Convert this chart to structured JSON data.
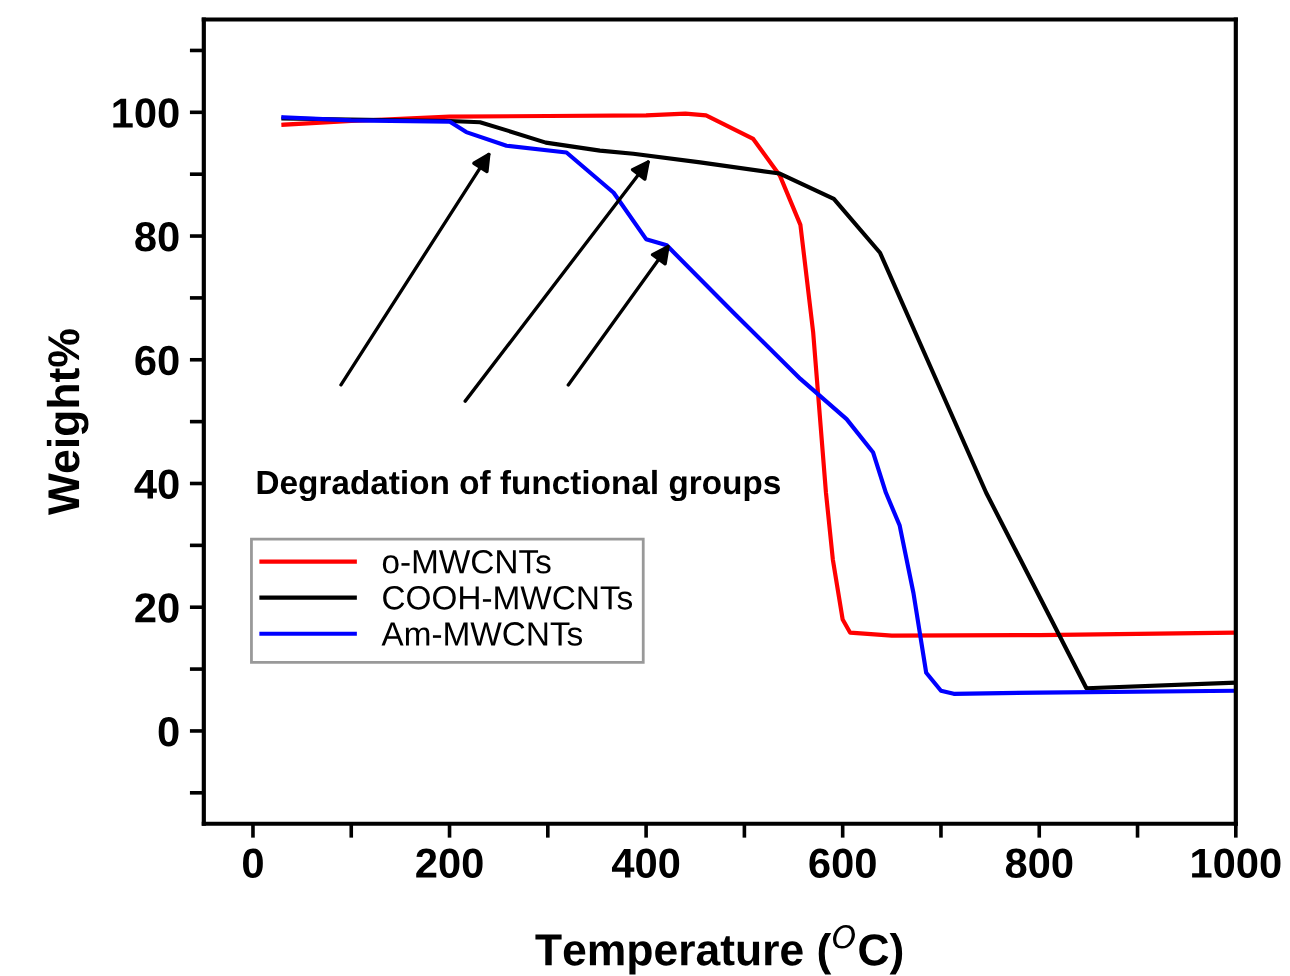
{
  "chart_data": {
    "type": "line",
    "xlabel": "Temperature ($^{O}$C)",
    "ylabel": "Weight%",
    "xlim": [
      -50,
      1000
    ],
    "ylim": [
      -15,
      115
    ],
    "xticks": [
      0,
      {
        "value": 100,
        "label": null
      },
      200,
      {
        "value": 300,
        "label": null
      },
      400,
      {
        "value": 500,
        "label": null
      },
      600,
      {
        "value": 700,
        "label": null
      },
      800,
      {
        "value": 900,
        "label": null
      },
      1000
    ],
    "yticks": [
      {
        "value": -10,
        "label": null
      },
      0,
      {
        "value": 10,
        "label": null
      },
      20,
      {
        "value": 30,
        "label": null
      },
      40,
      {
        "value": 50,
        "label": null
      },
      60,
      {
        "value": 70,
        "label": null
      },
      80,
      {
        "value": 90,
        "label": null
      },
      100,
      {
        "value": 110,
        "label": null
      }
    ],
    "grid": false,
    "legend": "bottom left",
    "marker": "none",
    "line_style": "solid",
    "series": [
      {
        "name": "o-MWCNTs",
        "color": "#ff0000",
        "x": [
          31,
          100,
          200,
          300,
          400,
          440,
          461,
          509,
          536,
          557,
          570,
          583,
          590,
          600,
          607.5,
          650,
          800,
          1000
        ],
        "values": [
          98,
          98.6,
          99.3,
          99.4,
          99.5,
          99.8,
          99.5,
          95.7,
          89.8,
          81.8,
          64.4,
          38.5,
          27.7,
          18,
          15.9,
          15.4,
          15.5,
          15.9
        ]
      },
      {
        "name": "COOH-MWCNTs",
        "color": "#000000",
        "x": [
          31,
          200,
          231,
          260,
          298,
          353,
          387,
          455,
          536,
          591,
          638,
          692,
          746,
          848,
          998
        ],
        "values": [
          99,
          98.6,
          98.4,
          97,
          95.1,
          93.8,
          93.3,
          91.9,
          90.1,
          86,
          77.3,
          57.9,
          38.5,
          6.9,
          7.8
        ]
      },
      {
        "name": "Am-MWCNTs",
        "color": "#0000ff",
        "x": [
          31,
          100,
          200,
          217,
          258,
          319,
          367,
          400,
          421,
          489,
          557,
          604,
          631,
          644,
          658,
          672,
          685,
          700,
          713,
          800,
          1000
        ],
        "values": [
          99.2,
          98.7,
          98.5,
          96.8,
          94.6,
          93.5,
          87,
          79.5,
          78.5,
          67.6,
          56.9,
          50.4,
          45,
          38.5,
          33.2,
          22.3,
          9.4,
          6.5,
          6,
          6.2,
          6.5
        ]
      }
    ],
    "annotations": [
      "Degradation of functional groups"
    ]
  }
}
